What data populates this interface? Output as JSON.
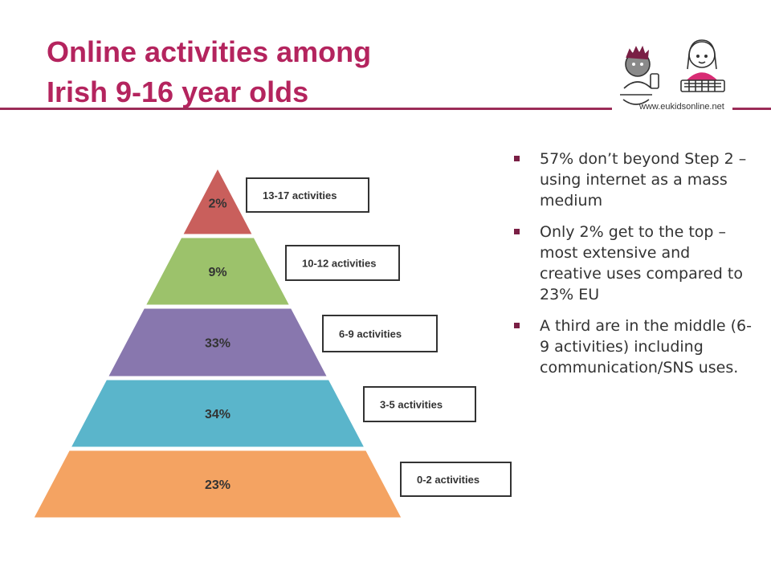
{
  "header": {
    "title_line1": "Online activities among",
    "title_line2": "Irish 9-16 year olds"
  },
  "logo": {
    "url_text": "www.eukidsonline.net"
  },
  "pyramid": {
    "levels": [
      {
        "percent": "2%",
        "label": "13-17 activities",
        "color": "#c95f5c"
      },
      {
        "percent": "9%",
        "label": "10-12 activities",
        "color": "#9cc26b"
      },
      {
        "percent": "33%",
        "label": "6-9 activities",
        "color": "#8877ae"
      },
      {
        "percent": "34%",
        "label": "3-5 activities",
        "color": "#5ab5cb"
      },
      {
        "percent": "23%",
        "label": "0-2 activities",
        "color": "#f4a362"
      }
    ]
  },
  "bullets": [
    "57% don’t beyond Step 2 – using internet as a mass medium",
    "Only 2% get to the top – most extensive and creative uses compared to 23% EU",
    "A third are in the middle (6-9 activities) including communication/SNS uses."
  ],
  "colors": {
    "title": "#b4245e",
    "rule": "#9b2c58",
    "bullet": "#7a1f45"
  }
}
